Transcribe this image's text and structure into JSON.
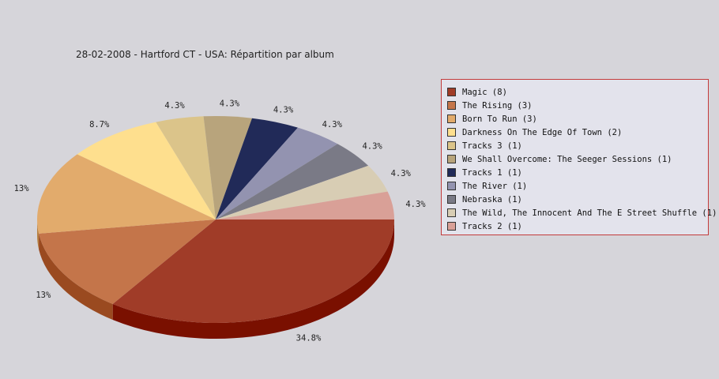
{
  "chart_data": {
    "type": "pie",
    "title": "28-02-2008 - Hartford CT - USA:  Répartition par album",
    "legend_position": "right",
    "slices": [
      {
        "label": "Magic (8)",
        "value": 8,
        "percent_label": "34.8%",
        "color": "#a03c28",
        "side": "#7a1000"
      },
      {
        "label": "The Rising (3)",
        "value": 3,
        "percent_label": "13%",
        "color": "#c4754a",
        "side": "#9a4a20"
      },
      {
        "label": "Born To Run (3)",
        "value": 3,
        "percent_label": "13%",
        "color": "#e2ab6c",
        "side": "#b88040"
      },
      {
        "label": "Darkness On The Edge Of Town (2)",
        "value": 2,
        "percent_label": "8.7%",
        "color": "#fedf8e",
        "side": "#ccb060"
      },
      {
        "label": "Tracks 3 (1)",
        "value": 1,
        "percent_label": "4.3%",
        "color": "#dbc48a",
        "side": "#b09a60"
      },
      {
        "label": "We Shall Overcome: The Seeger Sessions (1)",
        "value": 1,
        "percent_label": "4.3%",
        "color": "#b8a47c",
        "side": "#8e7a56"
      },
      {
        "label": "Tracks 1 (1)",
        "value": 1,
        "percent_label": "4.3%",
        "color": "#212a58",
        "side": "#10163a"
      },
      {
        "label": "The River (1)",
        "value": 1,
        "percent_label": "4.3%",
        "color": "#9393b0",
        "side": "#6c6c88"
      },
      {
        "label": "Nebraska (1)",
        "value": 1,
        "percent_label": "4.3%",
        "color": "#7a7a86",
        "side": "#56565f"
      },
      {
        "label": "The Wild, The Innocent And The E Street Shuffle (1)",
        "value": 1,
        "percent_label": "4.3%",
        "color": "#d8cdb4",
        "side": "#ada088"
      },
      {
        "label": "Tracks 2 (1)",
        "value": 1,
        "percent_label": "4.3%",
        "color": "#d9a097",
        "side": "#b07068"
      }
    ]
  }
}
